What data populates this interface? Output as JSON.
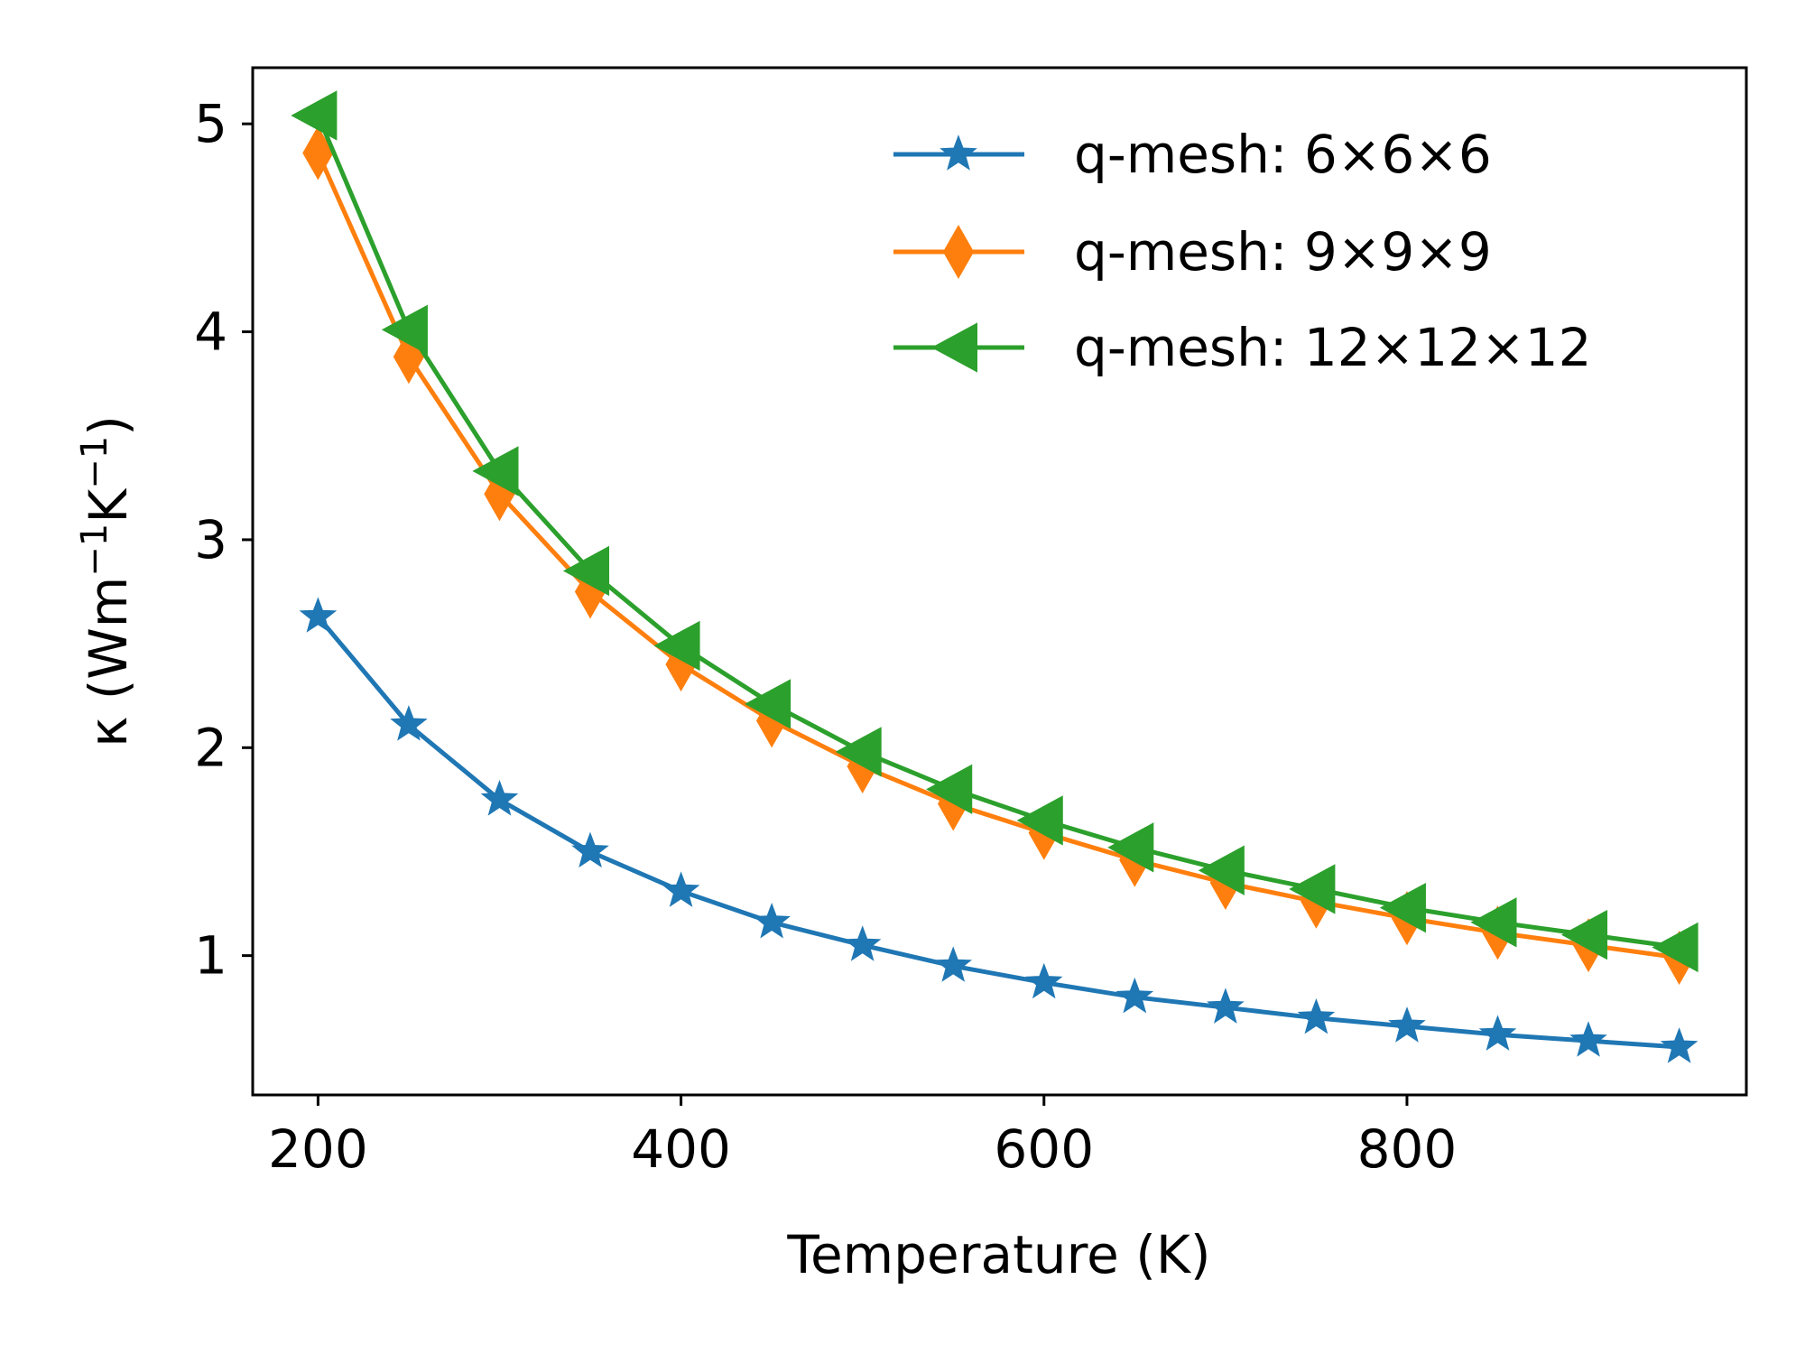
{
  "chart_data": {
    "type": "line",
    "title": "",
    "xlabel": "Temperature (K)",
    "ylabel_prefix": "κ (Wm",
    "ylabel_sup1": "−1",
    "ylabel_mid": "K",
    "ylabel_sup2": "−1",
    "ylabel_suffix": ")",
    "xlim": [
      164,
      987
    ],
    "ylim": [
      0.33,
      5.27
    ],
    "xticks": [
      200,
      400,
      600,
      800
    ],
    "yticks": [
      1,
      2,
      3,
      4,
      5
    ],
    "grid": false,
    "legend_position": "top-right",
    "x": [
      200,
      250,
      300,
      350,
      400,
      450,
      500,
      550,
      600,
      650,
      700,
      750,
      800,
      850,
      900,
      950
    ],
    "series": [
      {
        "name": "q-mesh: 6×6×6",
        "color": "#1f77b4",
        "marker": "star",
        "values": [
          2.63,
          2.11,
          1.75,
          1.5,
          1.31,
          1.16,
          1.05,
          0.95,
          0.87,
          0.8,
          0.75,
          0.7,
          0.66,
          0.62,
          0.59,
          0.56
        ]
      },
      {
        "name": "q-mesh: 9×9×9",
        "color": "#ff7f0e",
        "marker": "thin-diamond",
        "values": [
          4.86,
          3.88,
          3.22,
          2.75,
          2.4,
          2.13,
          1.91,
          1.73,
          1.59,
          1.46,
          1.35,
          1.26,
          1.18,
          1.11,
          1.05,
          0.99
        ]
      },
      {
        "name": "q-mesh: 12×12×12",
        "color": "#2ca02c",
        "marker": "triangle-left",
        "values": [
          5.04,
          4.01,
          3.33,
          2.85,
          2.49,
          2.21,
          1.98,
          1.8,
          1.65,
          1.52,
          1.41,
          1.32,
          1.23,
          1.16,
          1.1,
          1.04
        ]
      }
    ]
  }
}
